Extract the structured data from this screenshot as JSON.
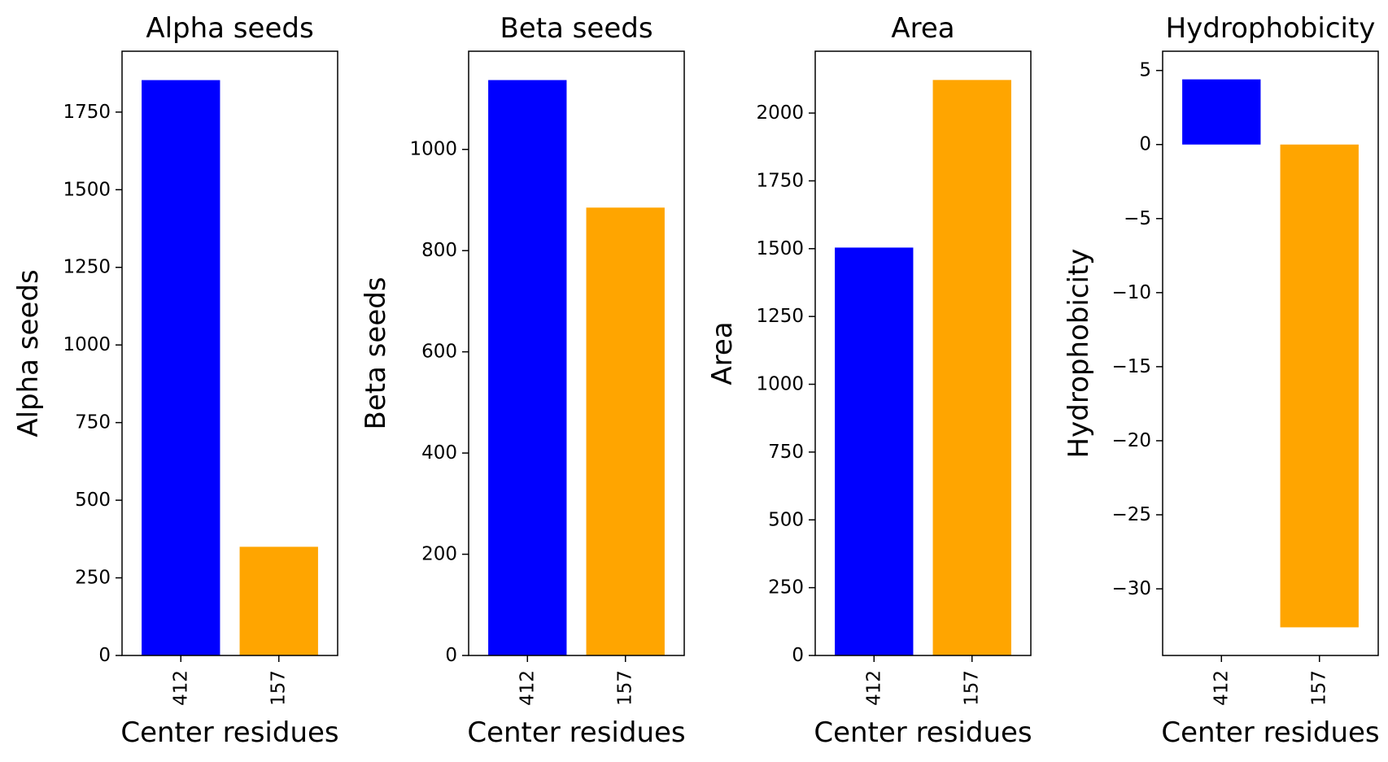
{
  "colors": {
    "bar_primary": "#0000ff",
    "bar_secondary": "#ffa500",
    "axes": "#000000",
    "background": "#ffffff"
  },
  "chart_data": [
    {
      "type": "bar",
      "title": "Alpha seeds",
      "xlabel": "Center residues",
      "ylabel": "Alpha seeds",
      "categories": [
        "412",
        "157"
      ],
      "values": [
        1853,
        350
      ],
      "bar_colors": [
        "#0000ff",
        "#ffa500"
      ],
      "ylim": [
        0,
        1946
      ],
      "yticks": [
        0,
        250,
        500,
        750,
        1000,
        1250,
        1500,
        1750
      ],
      "ytick_labels": [
        "0",
        "250",
        "500",
        "750",
        "1000",
        "1250",
        "1500",
        "1750"
      ],
      "grid": false,
      "legend": "none"
    },
    {
      "type": "bar",
      "title": "Beta seeds",
      "xlabel": "Center residues",
      "ylabel": "Beta seeds",
      "categories": [
        "412",
        "157"
      ],
      "values": [
        1137,
        885
      ],
      "bar_colors": [
        "#0000ff",
        "#ffa500"
      ],
      "ylim": [
        0,
        1194
      ],
      "yticks": [
        0,
        200,
        400,
        600,
        800,
        1000
      ],
      "ytick_labels": [
        "0",
        "200",
        "400",
        "600",
        "800",
        "1000"
      ],
      "grid": false,
      "legend": "none"
    },
    {
      "type": "bar",
      "title": "Area",
      "xlabel": "Center residues",
      "ylabel": "Area",
      "categories": [
        "412",
        "157"
      ],
      "values": [
        1504,
        2122
      ],
      "bar_colors": [
        "#0000ff",
        "#ffa500"
      ],
      "ylim": [
        0,
        2228
      ],
      "yticks": [
        0,
        250,
        500,
        750,
        1000,
        1250,
        1500,
        1750,
        2000
      ],
      "ytick_labels": [
        "0",
        "250",
        "500",
        "750",
        "1000",
        "1250",
        "1500",
        "1750",
        "2000"
      ],
      "grid": false,
      "legend": "none"
    },
    {
      "type": "bar",
      "title": "Hydrophobicity",
      "xlabel": "Center residues",
      "ylabel": "Hydrophobicity",
      "categories": [
        "412",
        "157"
      ],
      "values": [
        4.4,
        -32.6
      ],
      "bar_colors": [
        "#0000ff",
        "#ffa500"
      ],
      "ylim": [
        -34.5,
        6.3
      ],
      "yticks": [
        -30,
        -25,
        -20,
        -15,
        -10,
        -5,
        0,
        5
      ],
      "ytick_labels": [
        "−30",
        "−25",
        "−20",
        "−15",
        "−10",
        "−5",
        "0",
        "5"
      ],
      "grid": false,
      "legend": "none"
    }
  ]
}
